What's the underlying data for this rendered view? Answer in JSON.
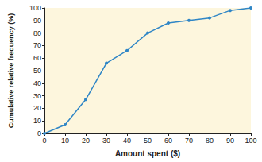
{
  "chart_data": {
    "type": "line",
    "x_label": "Amount spent ($)",
    "y_label": "Cumulative relative frequency (%)",
    "x": [
      0,
      10,
      20,
      30,
      40,
      50,
      60,
      70,
      80,
      90,
      100
    ],
    "values": [
      0,
      7,
      27,
      56,
      66,
      80,
      88,
      90,
      92,
      98,
      100
    ],
    "color": "#2f86c6",
    "marker": "circle",
    "xlim": [
      0,
      100
    ],
    "xticks": [
      0,
      10,
      20,
      30,
      40,
      50,
      60,
      70,
      80,
      90,
      100
    ],
    "ylim": [
      0,
      100
    ],
    "yticks": [
      0,
      10,
      20,
      30,
      40,
      50,
      60,
      70,
      80,
      90,
      100
    ],
    "grid": false
  }
}
